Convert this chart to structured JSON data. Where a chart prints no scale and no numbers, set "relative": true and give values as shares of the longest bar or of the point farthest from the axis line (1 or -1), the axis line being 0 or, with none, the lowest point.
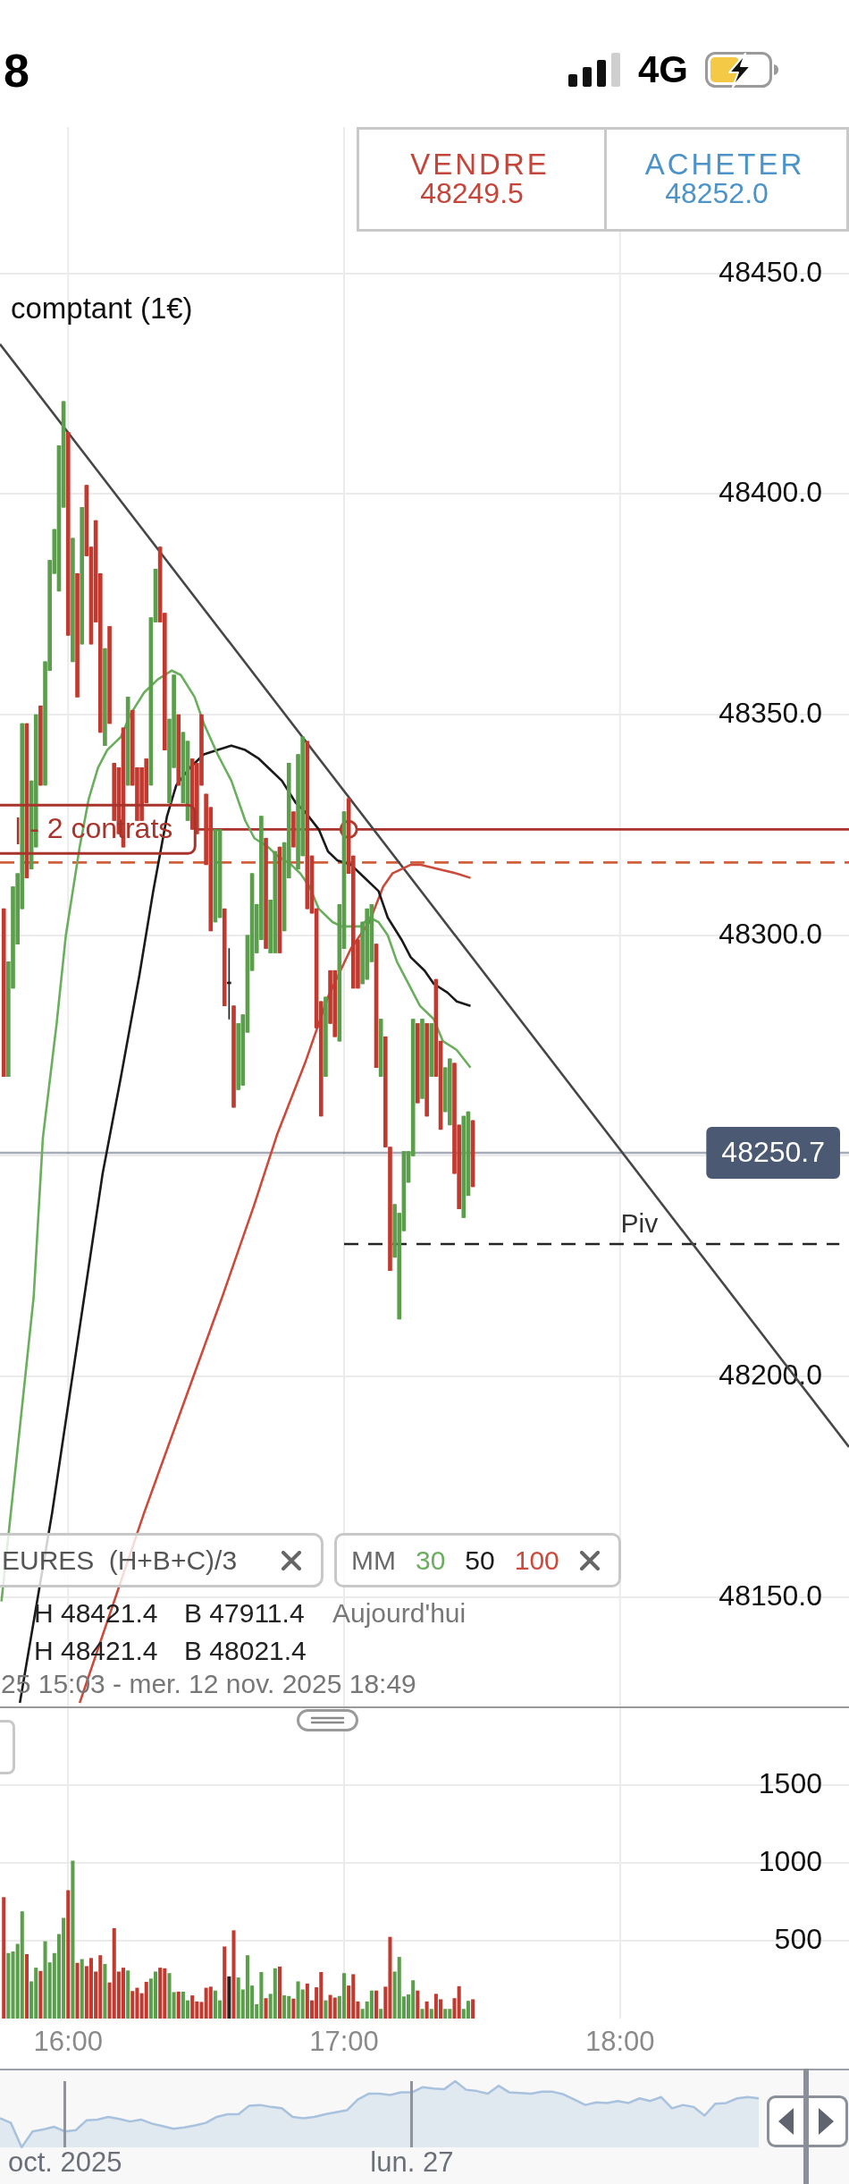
{
  "chart_data": [
    {
      "type": "candlestick",
      "title": "comptant (1€)",
      "legend": "bottom left",
      "legend_title": "MM",
      "x": [
        15.7667,
        15.7833,
        15.8,
        15.8167,
        15.8333,
        15.85,
        15.8667,
        15.8833,
        15.9,
        15.9167,
        15.9333,
        15.95,
        15.9667,
        15.9833,
        16,
        16.0167,
        16.0333,
        16.05,
        16.0667,
        16.0833,
        16.1,
        16.1167,
        16.1333,
        16.15,
        16.1667,
        16.1833,
        16.2,
        16.2167,
        16.2333,
        16.25,
        16.2667,
        16.2833,
        16.3,
        16.3167,
        16.3333,
        16.35,
        16.3667,
        16.3833,
        16.4,
        16.4167,
        16.4333,
        16.45,
        16.4667,
        16.4833,
        16.5,
        16.5167,
        16.5333,
        16.55,
        16.5667,
        16.5833,
        16.6,
        16.6167,
        16.6333,
        16.65,
        16.6667,
        16.6833,
        16.7,
        16.7167,
        16.7333,
        16.75,
        16.7667,
        16.7833,
        16.8,
        16.8167,
        16.8333,
        16.85,
        16.8667,
        16.8833,
        16.9,
        16.9167,
        16.9333,
        16.95,
        16.9667,
        16.9833,
        17,
        17.0167,
        17.0333,
        17.05,
        17.0667,
        17.0833,
        17.1,
        17.1167,
        17.1333,
        17.15,
        17.1667,
        17.1833,
        17.2,
        17.2167,
        17.2333,
        17.25,
        17.2667,
        17.2833,
        17.3,
        17.3167,
        17.3333,
        17.35,
        17.3667,
        17.3833,
        17.4,
        17.4167,
        17.4333,
        17.45,
        17.4667
      ],
      "ohlc": [
        [
          48306,
          48306,
          48268,
          48268
        ],
        [
          48268,
          48294,
          48268,
          48294
        ],
        [
          48288,
          48311,
          48288,
          48311
        ],
        [
          48298,
          48314,
          48298,
          48314
        ],
        [
          48306,
          48348,
          48306,
          48348
        ],
        [
          48348,
          48348,
          48313,
          48313
        ],
        [
          48315,
          48335,
          48315,
          48335
        ],
        [
          48320,
          48350,
          48320,
          48350
        ],
        [
          48352,
          48352,
          48334,
          48334
        ],
        [
          48334,
          48362,
          48334,
          48362
        ],
        [
          48360,
          48385,
          48360,
          48385
        ],
        [
          48382,
          48392,
          48382,
          48392
        ],
        [
          48378,
          48411,
          48378,
          48411
        ],
        [
          48397,
          48421,
          48397,
          48421
        ],
        [
          48414,
          48414,
          48368,
          48368
        ],
        [
          48362,
          48390,
          48362,
          48390
        ],
        [
          48382,
          48382,
          48354,
          48354
        ],
        [
          48366,
          48397,
          48366,
          48397
        ],
        [
          48402,
          48402,
          48386,
          48386
        ],
        [
          48388,
          48388,
          48366,
          48366
        ],
        [
          48394,
          48394,
          48371,
          48371
        ],
        [
          48382,
          48382,
          48346,
          48346
        ],
        [
          48343,
          48365,
          48343,
          48365
        ],
        [
          48370,
          48370,
          48348,
          48348
        ],
        [
          48339,
          48339,
          48326,
          48326
        ],
        [
          48338,
          48338,
          48323,
          48323
        ],
        [
          48347,
          48347,
          48320,
          48320
        ],
        [
          48334,
          48354,
          48334,
          48354
        ],
        [
          48351,
          48351,
          48334,
          48334
        ],
        [
          48338,
          48338,
          48326,
          48326
        ],
        [
          48338,
          48338,
          48326,
          48326
        ],
        [
          48340,
          48340,
          48330,
          48330
        ],
        [
          48334,
          48372,
          48334,
          48372
        ],
        [
          48371,
          48383,
          48371,
          48383
        ],
        [
          48388,
          48388,
          48371,
          48371
        ],
        [
          48373,
          48373,
          48342,
          48342
        ],
        [
          48330,
          48349,
          48330,
          48349
        ],
        [
          48338,
          48359,
          48338,
          48359
        ],
        [
          48350,
          48350,
          48334,
          48334
        ],
        [
          48330,
          48346,
          48330,
          48346
        ],
        [
          48326,
          48344,
          48326,
          48344
        ],
        [
          48340,
          48340,
          48324,
          48324
        ],
        [
          48339,
          48339,
          48323,
          48323
        ],
        [
          48350,
          48350,
          48334,
          48334
        ],
        [
          48332,
          48332,
          48316,
          48316
        ],
        [
          48329,
          48329,
          48301,
          48301
        ],
        [
          48303,
          48324,
          48303,
          48324
        ],
        [
          48304,
          48324,
          48304,
          48324
        ],
        [
          48306,
          48306,
          48284,
          48284
        ],
        [
          48289,
          48297,
          48281,
          48289
        ],
        [
          48284,
          48284,
          48261,
          48261
        ],
        [
          48265,
          48280,
          48265,
          48280
        ],
        [
          48266,
          48282,
          48266,
          48282
        ],
        [
          48278,
          48300,
          48278,
          48300
        ],
        [
          48292,
          48314,
          48292,
          48314
        ],
        [
          48296,
          48307,
          48296,
          48307
        ],
        [
          48299,
          48327,
          48299,
          48327
        ],
        [
          48322,
          48322,
          48297,
          48297
        ],
        [
          48296,
          48308,
          48296,
          48308
        ],
        [
          48296,
          48319,
          48296,
          48319
        ],
        [
          48320,
          48320,
          48296,
          48296
        ],
        [
          48301,
          48321,
          48301,
          48321
        ],
        [
          48313,
          48339,
          48313,
          48339
        ],
        [
          48328,
          48328,
          48320,
          48320
        ],
        [
          48315,
          48341,
          48315,
          48341
        ],
        [
          48318,
          48345,
          48318,
          48345
        ],
        [
          48344,
          48344,
          48306,
          48306
        ],
        [
          48318,
          48318,
          48305,
          48305
        ],
        [
          48306,
          48306,
          48279,
          48279
        ],
        [
          48285,
          48285,
          48259,
          48259
        ],
        [
          48268,
          48286,
          48268,
          48286
        ],
        [
          48292,
          48292,
          48280,
          48280
        ],
        [
          48292,
          48292,
          48277,
          48277
        ],
        [
          48276,
          48307,
          48276,
          48307
        ],
        [
          48297,
          48328,
          48297,
          48328
        ],
        [
          48331,
          48331,
          48314,
          48314
        ],
        [
          48318,
          48318,
          48288,
          48288
        ],
        [
          48299,
          48299,
          48288,
          48288
        ],
        [
          48289,
          48303,
          48289,
          48303
        ],
        [
          48290,
          48306,
          48290,
          48306
        ],
        [
          48294,
          48307,
          48294,
          48307
        ],
        [
          48298,
          48298,
          48270,
          48270
        ],
        [
          48268,
          48281,
          48268,
          48281
        ],
        [
          48277,
          48277,
          48252,
          48252
        ],
        [
          48252,
          48252,
          48224,
          48224
        ],
        [
          48227,
          48239,
          48227,
          48239
        ],
        [
          48213,
          48237,
          48213,
          48237
        ],
        [
          48233,
          48251,
          48233,
          48251
        ],
        [
          48244,
          48251,
          48244,
          48251
        ],
        [
          48250,
          48281,
          48250,
          48281
        ],
        [
          48280,
          48280,
          48262,
          48262
        ],
        [
          48263,
          48281,
          48263,
          48281
        ],
        [
          48280,
          48280,
          48259,
          48259
        ],
        [
          48268,
          48280,
          48268,
          48280
        ],
        [
          48290,
          48290,
          48268,
          48268
        ],
        [
          48276,
          48276,
          48256,
          48256
        ],
        [
          48260,
          48270,
          48260,
          48270
        ],
        [
          48257,
          48272,
          48257,
          48272
        ],
        [
          48271,
          48271,
          48246,
          48246
        ],
        [
          48257,
          48257,
          48238,
          48238
        ],
        [
          48236,
          48259,
          48236,
          48259
        ],
        [
          48241,
          48260,
          48241,
          48260
        ],
        [
          48258,
          48258,
          48243,
          48243
        ]
      ],
      "colors": [
        "#c23a2f",
        "#5b9e4b",
        "#5b9e4b",
        "#5b9e4b",
        "#5b9e4b",
        "#c23a2f",
        "#5b9e4b",
        "#5b9e4b",
        "#c23a2f",
        "#5b9e4b",
        "#5b9e4b",
        "#5b9e4b",
        "#5b9e4b",
        "#5b9e4b",
        "#c23a2f",
        "#5b9e4b",
        "#c23a2f",
        "#5b9e4b",
        "#c23a2f",
        "#c23a2f",
        "#c23a2f",
        "#c23a2f",
        "#5b9e4b",
        "#c23a2f",
        "#c23a2f",
        "#c23a2f",
        "#c23a2f",
        "#5b9e4b",
        "#c23a2f",
        "#c23a2f",
        "#c23a2f",
        "#c23a2f",
        "#5b9e4b",
        "#5b9e4b",
        "#c23a2f",
        "#c23a2f",
        "#5b9e4b",
        "#5b9e4b",
        "#c23a2f",
        "#5b9e4b",
        "#5b9e4b",
        "#c23a2f",
        "#c23a2f",
        "#c23a2f",
        "#c23a2f",
        "#c23a2f",
        "#5b9e4b",
        "#5b9e4b",
        "#c23a2f",
        "#222222",
        "#c23a2f",
        "#5b9e4b",
        "#5b9e4b",
        "#5b9e4b",
        "#5b9e4b",
        "#5b9e4b",
        "#5b9e4b",
        "#c23a2f",
        "#5b9e4b",
        "#5b9e4b",
        "#c23a2f",
        "#5b9e4b",
        "#5b9e4b",
        "#c23a2f",
        "#5b9e4b",
        "#5b9e4b",
        "#c23a2f",
        "#c23a2f",
        "#c23a2f",
        "#c23a2f",
        "#5b9e4b",
        "#c23a2f",
        "#c23a2f",
        "#5b9e4b",
        "#5b9e4b",
        "#c23a2f",
        "#c23a2f",
        "#c23a2f",
        "#5b9e4b",
        "#5b9e4b",
        "#5b9e4b",
        "#c23a2f",
        "#5b9e4b",
        "#c23a2f",
        "#c23a2f",
        "#5b9e4b",
        "#5b9e4b",
        "#5b9e4b",
        "#5b9e4b",
        "#5b9e4b",
        "#c23a2f",
        "#5b9e4b",
        "#c23a2f",
        "#5b9e4b",
        "#c23a2f",
        "#c23a2f",
        "#5b9e4b",
        "#5b9e4b",
        "#c23a2f",
        "#c23a2f",
        "#5b9e4b",
        "#5b9e4b",
        "#c23a2f"
      ],
      "xlim": [
        15.753,
        18.83
      ],
      "xticks": [
        {
          "value": 16,
          "label": null
        },
        {
          "value": 17,
          "label": null
        },
        {
          "value": 18,
          "label": null
        }
      ],
      "ylim": [
        48125,
        48512
      ],
      "yticks": [
        {
          "value": 48150,
          "label": "48150.0"
        },
        {
          "value": 48200,
          "label": "48200.0"
        },
        {
          "value": 48250,
          "label": null
        },
        {
          "value": 48300,
          "label": "48300.0"
        },
        {
          "value": 48350,
          "label": "48350.0"
        },
        {
          "value": 48400,
          "label": "48400.0"
        },
        {
          "value": 48450,
          "label": "48450.0"
        }
      ],
      "tick_labels": "y",
      "grid": true,
      "series": [
        {
          "type": "line",
          "name": "30",
          "color": "#6aae5e",
          "x": [
            15.7583,
            15.875,
            15.9083,
            15.9583,
            15.9917,
            16.0417,
            16.075,
            16.1083,
            16.1417,
            16.1917,
            16.225,
            16.275,
            16.325,
            16.375,
            16.4083,
            16.4583,
            16.4917,
            16.5417,
            16.5917,
            16.6417,
            16.675,
            16.725,
            16.7583,
            16.8083,
            16.8417,
            16.875,
            16.9083,
            16.9583,
            16.9917,
            17.025,
            17.0583,
            17.0917,
            17.125,
            17.1583,
            17.1917,
            17.2417,
            17.275,
            17.325,
            17.3583,
            17.4083,
            17.4583
          ],
          "values": [
            48149,
            48218,
            48254,
            48280,
            48300,
            48320,
            48331,
            48338,
            48342,
            48345,
            48350,
            48355,
            48358,
            48360,
            48359,
            48354,
            48348,
            48341,
            48335,
            48326,
            48322,
            48320,
            48318,
            48316,
            48314,
            48311,
            48306,
            48303,
            48302,
            48302,
            48302,
            48304,
            48303,
            48300,
            48294,
            48288,
            48284,
            48281,
            48276,
            48274,
            48270
          ]
        },
        {
          "type": "line",
          "name": "50",
          "color": "#1a1a1a",
          "x": [
            15.825,
            15.9417,
            16.0583,
            16.125,
            16.1917,
            16.2583,
            16.3083,
            16.3583,
            16.3917,
            16.4417,
            16.4917,
            16.5417,
            16.5917,
            16.6417,
            16.6917,
            16.7417,
            16.775,
            16.825,
            16.8583,
            16.9083,
            16.9417,
            16.975,
            17.025,
            17.0583,
            17.125,
            17.1583,
            17.2083,
            17.2417,
            17.2917,
            17.325,
            17.375,
            17.4083,
            17.4583
          ],
          "values": [
            48126,
            48169,
            48218,
            48246,
            48268,
            48291,
            48310,
            48327,
            48334,
            48338,
            48341,
            48342,
            48343,
            48342,
            48340,
            48337,
            48335,
            48330,
            48328,
            48324,
            48319,
            48317,
            48316,
            48314,
            48310,
            48304,
            48299,
            48295,
            48292,
            48289,
            48287,
            48285,
            48284
          ]
        },
        {
          "type": "line",
          "name": "100",
          "color": "#cc4a3c",
          "x": [
            16.0417,
            16.275,
            16.425,
            16.5583,
            16.5917,
            16.675,
            16.7583,
            16.8583,
            16.9417,
            17.025,
            17.0917,
            17.1417,
            17.175,
            17.2417,
            17.275,
            17.3417,
            17.4083,
            17.4583
          ],
          "values": [
            48126,
            48169,
            48195,
            48218,
            48224,
            48239,
            48255,
            48271,
            48286,
            48297,
            48303,
            48311,
            48314,
            48316,
            48316,
            48315,
            48314,
            48313
          ]
        },
        {
          "type": "line",
          "color": "#474747",
          "x": [
            15.753,
            18.83
          ],
          "values": [
            48434,
            48184
          ]
        },
        {
          "type": "line",
          "color": "#262626",
          "line_style": "dashed",
          "x": [
            17,
            18.795
          ],
          "values": [
            48230,
            48230
          ]
        },
        {
          "type": "scatter",
          "color": "#b03a2e",
          "marker": "circle",
          "x": [
            17.017
          ],
          "values": [
            48324
          ]
        }
      ],
      "ref_lines": [
        {
          "axis": "y",
          "value": 48324,
          "label": "| - 2 contrats",
          "color": "#a8342b"
        },
        {
          "axis": "y",
          "value": 48316.5,
          "color": "#d0603c",
          "line_style": "dashed"
        },
        {
          "axis": "y",
          "value": 48250.7,
          "label": "48250.7",
          "color": "#4b5a72"
        }
      ],
      "annotations": [
        "8",
        "4G",
        "VENDRE",
        "48249.5",
        "ACHETER",
        "48252.0",
        "EURES (H+B+C)/3",
        "H 48421.4",
        "B 47911.4",
        "Aujourd'hui",
        "H 48421.4",
        "B 48021.4",
        "25 15:03 - mer. 12 nov. 2025 18:49",
        {
          "text": "Piv",
          "x": 18.07,
          "y": 48230
        }
      ]
    },
    {
      "type": "bar",
      "x": [
        15.7667,
        15.7833,
        15.8,
        15.8167,
        15.8333,
        15.85,
        15.8667,
        15.8833,
        15.9,
        15.9167,
        15.9333,
        15.95,
        15.9667,
        15.9833,
        16,
        16.0167,
        16.0333,
        16.05,
        16.0667,
        16.0833,
        16.1,
        16.1167,
        16.1333,
        16.15,
        16.1667,
        16.1833,
        16.2,
        16.2167,
        16.2333,
        16.25,
        16.2667,
        16.2833,
        16.3,
        16.3167,
        16.3333,
        16.35,
        16.3667,
        16.3833,
        16.4,
        16.4167,
        16.4333,
        16.45,
        16.4667,
        16.4833,
        16.5,
        16.5167,
        16.5333,
        16.55,
        16.5667,
        16.5833,
        16.6,
        16.6167,
        16.6333,
        16.65,
        16.6667,
        16.6833,
        16.7,
        16.7167,
        16.7333,
        16.75,
        16.7667,
        16.7833,
        16.8,
        16.8167,
        16.8333,
        16.85,
        16.8667,
        16.8833,
        16.9,
        16.9167,
        16.9333,
        16.95,
        16.9667,
        16.9833,
        17,
        17.0167,
        17.0333,
        17.05,
        17.0667,
        17.0833,
        17.1,
        17.1167,
        17.1333,
        17.15,
        17.1667,
        17.1833,
        17.2,
        17.2167,
        17.2333,
        17.25,
        17.2667,
        17.2833,
        17.3,
        17.3167,
        17.3333,
        17.35,
        17.3667,
        17.3833,
        17.4,
        17.4167,
        17.4333,
        17.45,
        17.4667
      ],
      "values": [
        778,
        419,
        429,
        478,
        687,
        412,
        237,
        325,
        304,
        495,
        359,
        419,
        541,
        645,
        823,
        1012,
        356,
        380,
        335,
        387,
        300,
        405,
        349,
        230,
        579,
        300,
        325,
        307,
        175,
        196,
        161,
        234,
        255,
        300,
        325,
        321,
        290,
        168,
        171,
        171,
        115,
        147,
        108,
        105,
        196,
        203,
        178,
        115,
        461,
        269,
        565,
        262,
        185,
        405,
        210,
        90,
        297,
        129,
        157,
        321,
        332,
        147,
        143,
        126,
        237,
        185,
        223,
        115,
        199,
        297,
        115,
        150,
        133,
        143,
        290,
        210,
        283,
        108,
        60,
        108,
        178,
        178,
        60,
        203,
        523,
        300,
        394,
        140,
        153,
        244,
        178,
        60,
        108,
        60,
        157,
        122,
        60,
        60,
        129,
        206,
        60,
        112,
        122
      ],
      "colors": [
        "#c23a2f",
        "#5b9e4b",
        "#5b9e4b",
        "#5b9e4b",
        "#5b9e4b",
        "#c23a2f",
        "#5b9e4b",
        "#5b9e4b",
        "#c23a2f",
        "#5b9e4b",
        "#5b9e4b",
        "#5b9e4b",
        "#5b9e4b",
        "#5b9e4b",
        "#c23a2f",
        "#5b9e4b",
        "#c23a2f",
        "#5b9e4b",
        "#c23a2f",
        "#c23a2f",
        "#c23a2f",
        "#c23a2f",
        "#5b9e4b",
        "#c23a2f",
        "#c23a2f",
        "#c23a2f",
        "#c23a2f",
        "#5b9e4b",
        "#c23a2f",
        "#c23a2f",
        "#c23a2f",
        "#c23a2f",
        "#5b9e4b",
        "#5b9e4b",
        "#c23a2f",
        "#c23a2f",
        "#5b9e4b",
        "#5b9e4b",
        "#c23a2f",
        "#5b9e4b",
        "#5b9e4b",
        "#c23a2f",
        "#c23a2f",
        "#c23a2f",
        "#c23a2f",
        "#c23a2f",
        "#5b9e4b",
        "#5b9e4b",
        "#c23a2f",
        "#222222",
        "#c23a2f",
        "#5b9e4b",
        "#5b9e4b",
        "#5b9e4b",
        "#5b9e4b",
        "#5b9e4b",
        "#5b9e4b",
        "#c23a2f",
        "#5b9e4b",
        "#5b9e4b",
        "#c23a2f",
        "#5b9e4b",
        "#5b9e4b",
        "#c23a2f",
        "#5b9e4b",
        "#5b9e4b",
        "#c23a2f",
        "#c23a2f",
        "#c23a2f",
        "#c23a2f",
        "#5b9e4b",
        "#c23a2f",
        "#c23a2f",
        "#5b9e4b",
        "#5b9e4b",
        "#c23a2f",
        "#c23a2f",
        "#c23a2f",
        "#5b9e4b",
        "#5b9e4b",
        "#5b9e4b",
        "#c23a2f",
        "#5b9e4b",
        "#c23a2f",
        "#c23a2f",
        "#5b9e4b",
        "#5b9e4b",
        "#5b9e4b",
        "#5b9e4b",
        "#5b9e4b",
        "#c23a2f",
        "#5b9e4b",
        "#c23a2f",
        "#5b9e4b",
        "#c23a2f",
        "#c23a2f",
        "#5b9e4b",
        "#5b9e4b",
        "#c23a2f",
        "#c23a2f",
        "#5b9e4b",
        "#5b9e4b",
        "#c23a2f"
      ],
      "xlim": [
        15.753,
        18.83
      ],
      "xticks": [
        {
          "value": 16,
          "label": "16:00"
        },
        {
          "value": 17,
          "label": "17:00"
        },
        {
          "value": 18,
          "label": "18:00"
        }
      ],
      "ylim": [
        0,
        2000
      ],
      "yticks": [
        500,
        1000,
        1500
      ],
      "grid": true
    },
    {
      "type": "area",
      "relative": true,
      "color": "#a8c2de",
      "grid": "x",
      "categories": [
        null,
        null,
        null,
        null,
        null,
        null,
        "oct. 2025",
        null,
        null,
        null,
        null,
        null,
        null,
        null,
        null,
        null,
        null,
        null,
        null,
        null,
        null,
        null,
        null,
        null,
        null,
        null,
        null,
        null,
        null,
        null,
        null,
        null,
        null,
        null,
        null,
        null,
        null,
        null,
        "lun. 27",
        null,
        null,
        null,
        null,
        null,
        null,
        null,
        null,
        null,
        null,
        null,
        null,
        null,
        null,
        null,
        null,
        null,
        null,
        null,
        null,
        null,
        null,
        null,
        null,
        null,
        null,
        null,
        null,
        null,
        null,
        null,
        null
      ],
      "values": [
        0.44,
        0.37,
        0,
        0.24,
        0.27,
        0.31,
        0.24,
        0.26,
        0.41,
        0.42,
        0.46,
        0.43,
        0.39,
        0.42,
        0.36,
        0.32,
        0.28,
        0.3,
        0.33,
        0.37,
        0.46,
        0.5,
        0.5,
        0.63,
        0.64,
        0.61,
        0.59,
        0.46,
        0.44,
        0.46,
        0.5,
        0.53,
        0.56,
        0.72,
        0.81,
        0.81,
        0.79,
        0.83,
        0.83,
        0.91,
        0.89,
        0.88,
        1,
        0.87,
        0.85,
        0.81,
        0.93,
        0.83,
        0.82,
        0.81,
        0.84,
        0.84,
        0.8,
        0.72,
        0.64,
        0.68,
        0.67,
        0.7,
        0.67,
        0.74,
        0.7,
        0.76,
        0.59,
        0.64,
        0.61,
        0.48,
        0.66,
        0.67,
        0.74,
        0.76,
        0.74
      ]
    }
  ]
}
